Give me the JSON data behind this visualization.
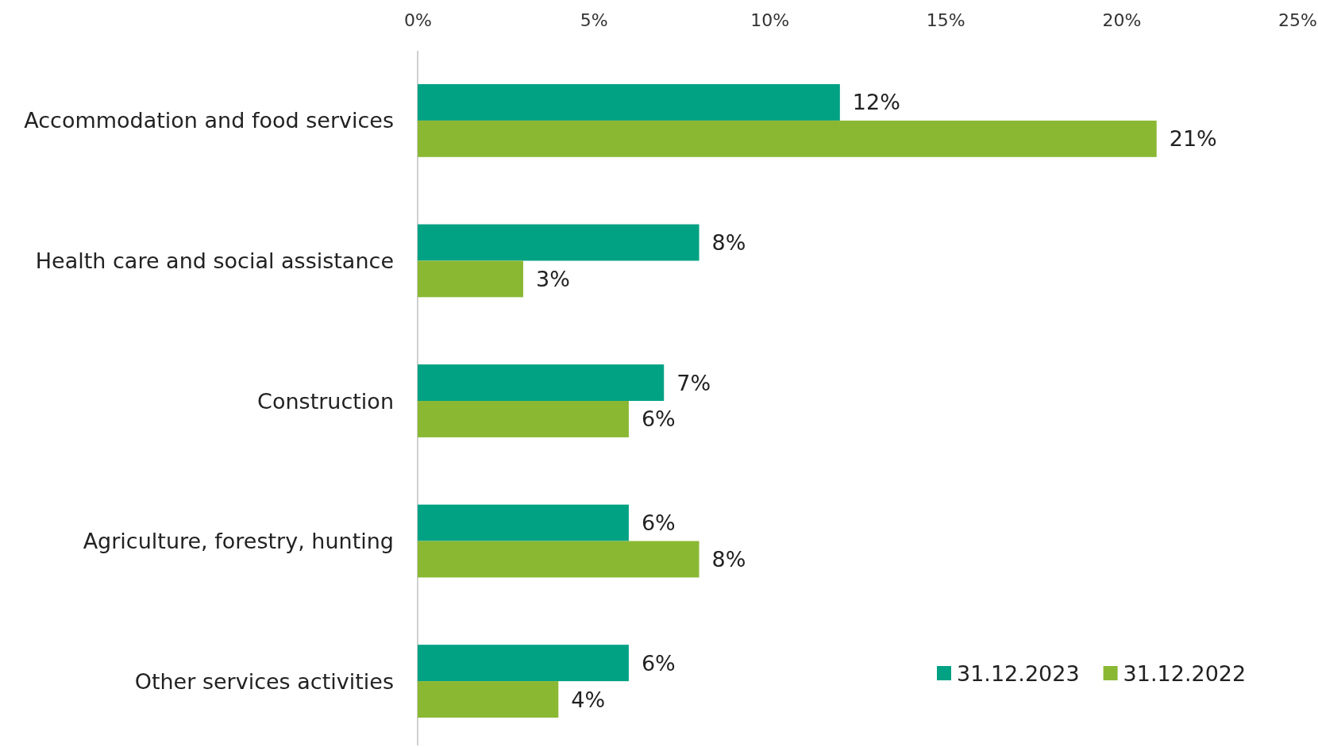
{
  "chart_data": {
    "type": "bar",
    "orientation": "horizontal",
    "categories": [
      "Accommodation and food services",
      "Health care and social assistance",
      "Construction",
      "Agriculture, forestry, hunting",
      "Other services activities"
    ],
    "series": [
      {
        "name": "31.12.2023",
        "color": "#00a284",
        "values": [
          12,
          8,
          7,
          6,
          6
        ],
        "value_labels": [
          "12%",
          "8%",
          "7%",
          "6%",
          "6%"
        ]
      },
      {
        "name": "31.12.2022",
        "color": "#8ab833",
        "values": [
          21,
          3,
          6,
          8,
          4
        ],
        "value_labels": [
          "21%",
          "3%",
          "6%",
          "8%",
          "4%"
        ]
      }
    ],
    "xlim": [
      0,
      25
    ],
    "xticks": [
      {
        "value": 0,
        "label": "0%"
      },
      {
        "value": 5,
        "label": "5%"
      },
      {
        "value": 10,
        "label": "10%"
      },
      {
        "value": 15,
        "label": "15%"
      },
      {
        "value": 20,
        "label": "20%"
      },
      {
        "value": 25,
        "label": "25%"
      }
    ],
    "grid": false,
    "legend": "bottom right"
  }
}
